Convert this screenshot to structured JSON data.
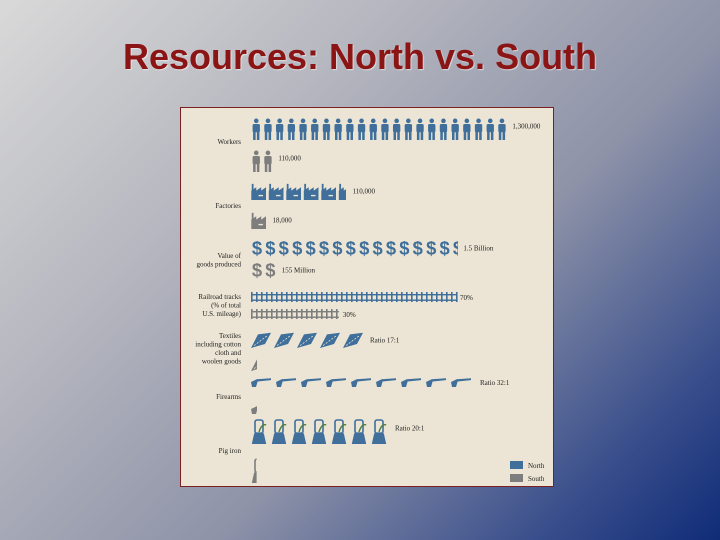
{
  "title": "Resources: North vs. South",
  "colors": {
    "north": "#3f6f9a",
    "south": "#7d7d7d",
    "panel": "#ece5d5",
    "border": "#7a2020",
    "title": "#8b1414"
  },
  "legend": [
    {
      "label": "North",
      "color": "#3f6f9a"
    },
    {
      "label": "South",
      "color": "#7d7d7d"
    }
  ],
  "chart_data": {
    "type": "pictograph",
    "categories": [
      {
        "name": "Workers",
        "icon": "worker-icon",
        "label_lines": [
          "Workers"
        ],
        "north": {
          "count": 22,
          "value_label": "1,300,000"
        },
        "south": {
          "count": 2,
          "value_label": "110,000"
        }
      },
      {
        "name": "Factories",
        "icon": "factory-icon",
        "label_lines": [
          "Factories"
        ],
        "north": {
          "count": 5.5,
          "value_label": "110,000"
        },
        "south": {
          "count": 1,
          "value_label": "18,000"
        }
      },
      {
        "name": "Value of goods produced",
        "icon": "dollar-icon",
        "label_lines": [
          "Value of",
          "goods produced"
        ],
        "north": {
          "count": 15.5,
          "value_label": "1.5 Billion"
        },
        "south": {
          "count": 2,
          "value_label": "155 Million"
        }
      },
      {
        "name": "Railroad tracks (% of total U.S. mileage)",
        "icon": "rail-icon",
        "label_lines": [
          "Railroad tracks",
          "(% of total",
          "U.S. mileage)"
        ],
        "north": {
          "count": 70,
          "value_label": "70%"
        },
        "south": {
          "count": 30,
          "value_label": "30%"
        }
      },
      {
        "name": "Textiles including cotton cloth and woolen goods",
        "icon": "textile-icon",
        "label_lines": [
          "Textiles",
          "including cotton",
          "cloth and",
          "woolen goods"
        ],
        "north": {
          "count": 5,
          "value_label": "Ratio 17:1"
        },
        "south": {
          "count": 0.3,
          "value_label": ""
        }
      },
      {
        "name": "Firearms",
        "icon": "rifle-icon",
        "label_lines": [
          "Firearms"
        ],
        "north": {
          "count": 9,
          "value_label": "Ratio 32:1"
        },
        "south": {
          "count": 0.3,
          "value_label": ""
        }
      },
      {
        "name": "Pig iron",
        "icon": "pig-iron-icon",
        "label_lines": [
          "Pig iron"
        ],
        "north": {
          "count": 7,
          "value_label": "Ratio 20:1"
        },
        "south": {
          "count": 0.35,
          "value_label": ""
        }
      }
    ]
  }
}
